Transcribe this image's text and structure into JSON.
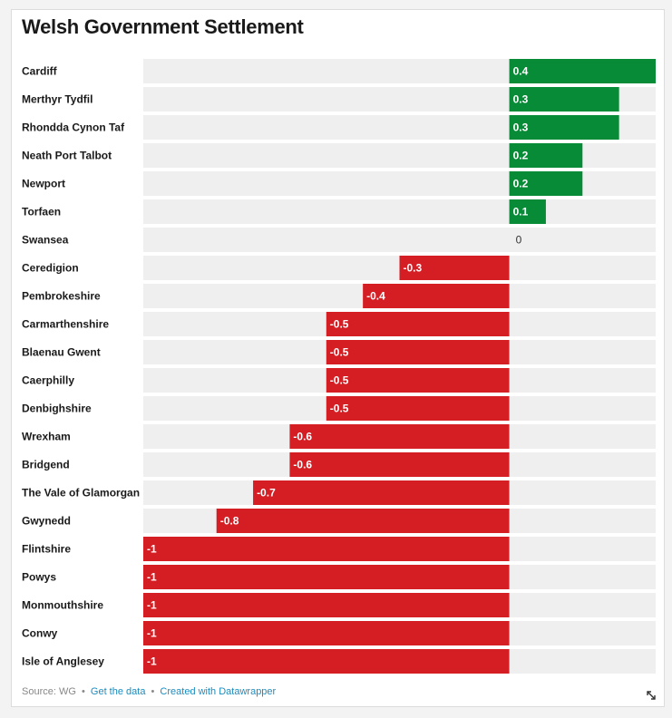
{
  "title": "Welsh Government Settlement",
  "footer": {
    "source": "Source: WG",
    "get_data": "Get the data",
    "created_with": "Created with Datawrapper",
    "bullet": "•"
  },
  "icons": {
    "resize": "expand-diagonal-icon"
  },
  "colors": {
    "positive": "#078b36",
    "negative": "#d51e24",
    "track": "#efefef",
    "zero_label": "#333333",
    "bar_label": "#ffffff",
    "row_label": "#1a1a1a",
    "link": "#1a8cc0"
  },
  "chart_data": {
    "type": "bar",
    "orientation": "horizontal",
    "title": "Welsh Government Settlement",
    "xlim": [
      -1,
      0.4
    ],
    "grid": false,
    "legend": "none",
    "categories": [
      "Cardiff",
      "Merthyr Tydfil",
      "Rhondda Cynon Taf",
      "Neath Port Talbot",
      "Newport",
      "Torfaen",
      "Swansea",
      "Ceredigion",
      "Pembrokeshire",
      "Carmarthenshire",
      "Blaenau Gwent",
      "Caerphilly",
      "Denbighshire",
      "Wrexham",
      "Bridgend",
      "The Vale of Glamorgan",
      "Gwynedd",
      "Flintshire",
      "Powys",
      "Monmouthshire",
      "Conwy",
      "Isle of Anglesey"
    ],
    "values": [
      0.4,
      0.3,
      0.3,
      0.2,
      0.2,
      0.1,
      0,
      -0.3,
      -0.4,
      -0.5,
      -0.5,
      -0.5,
      -0.5,
      -0.6,
      -0.6,
      -0.7,
      -0.8,
      -1,
      -1,
      -1,
      -1,
      -1
    ],
    "value_labels": [
      "0.4",
      "0.3",
      "0.3",
      "0.2",
      "0.2",
      "0.1",
      "0",
      "-0.3",
      "-0.4",
      "-0.5",
      "-0.5",
      "-0.5",
      "-0.5",
      "-0.6",
      "-0.6",
      "-0.7",
      "-0.8",
      "-1",
      "-1",
      "-1",
      "-1",
      "-1"
    ]
  }
}
